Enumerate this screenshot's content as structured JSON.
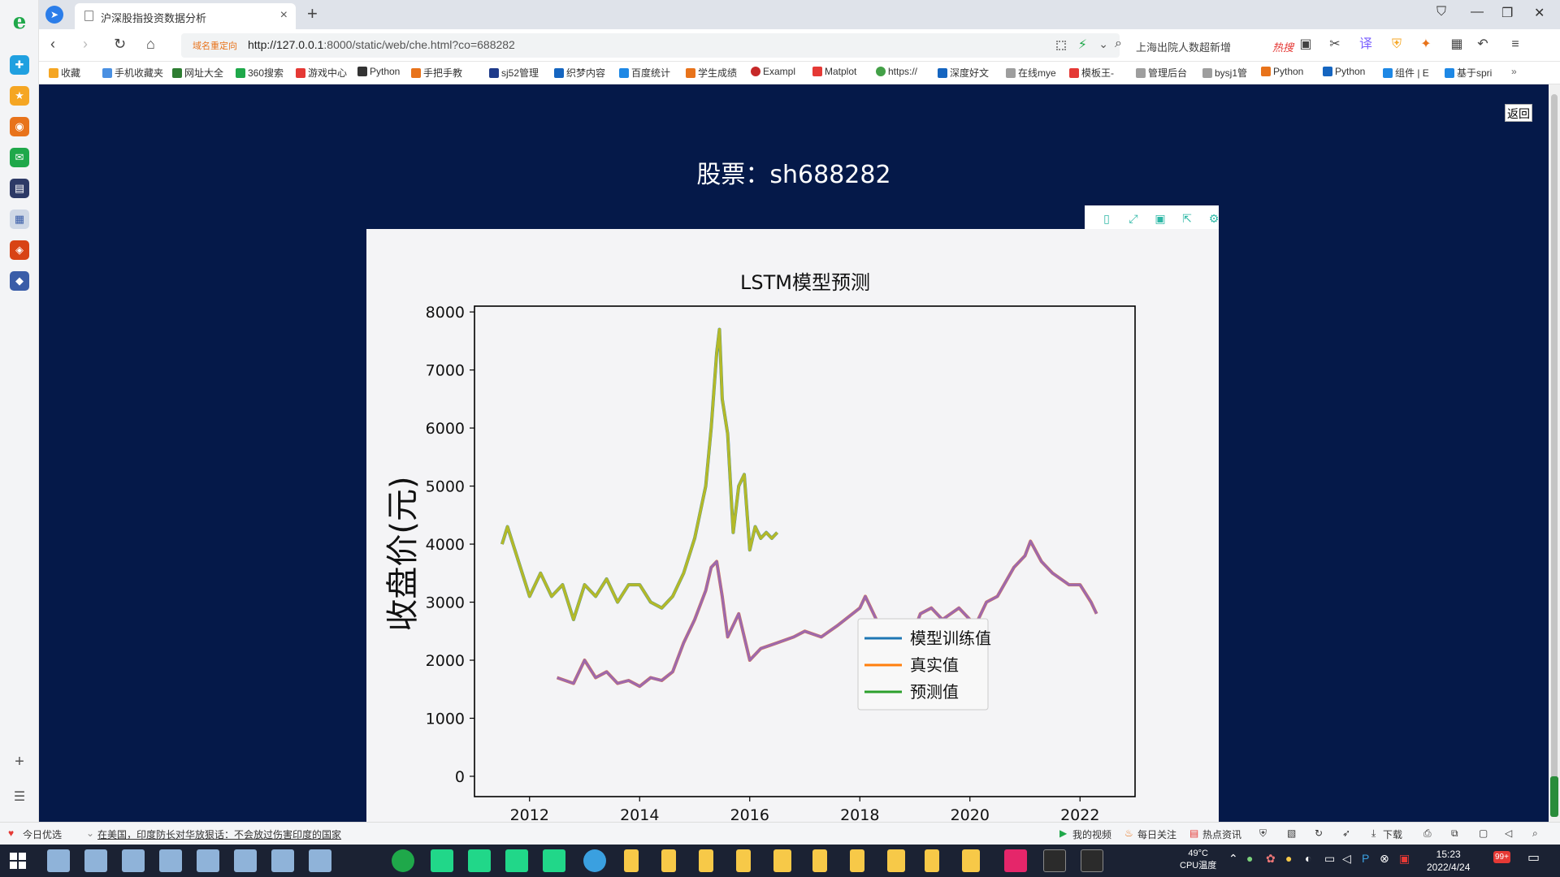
{
  "browser": {
    "tab_title": "沪深股指投资数据分析",
    "redirect_label": "域名重定向",
    "url_host": "http://127.0.0.1",
    "url_rest": ":8000/static/web/che.html?co=688282",
    "search_text": "上海出院人数超新增",
    "search_hot": "热搜"
  },
  "bookmarks": [
    {
      "label": "收藏",
      "color": "#f5a623"
    },
    {
      "label": "手机收藏夹",
      "color": "#4a90e2"
    },
    {
      "label": "网址大全",
      "color": "#2e7d32"
    },
    {
      "label": "360搜索",
      "color": "#1fa84a"
    },
    {
      "label": "游戏中心",
      "color": "#e53935"
    },
    {
      "label": "Python",
      "color": "#333333"
    },
    {
      "label": "手把手教",
      "color": "#e8731b"
    },
    {
      "label": "sj52管理",
      "color": "#1e3a8a"
    },
    {
      "label": "织梦内容",
      "color": "#1565c0"
    },
    {
      "label": "百度统计",
      "color": "#1e88e5"
    },
    {
      "label": "学生成绩",
      "color": "#e8731b"
    },
    {
      "label": "Exampl",
      "color": "#c62828"
    },
    {
      "label": "Matplot",
      "color": "#e53935"
    },
    {
      "label": "https://",
      "color": "#43a047"
    },
    {
      "label": "深度好文",
      "color": "#1565c0"
    },
    {
      "label": "在线mye",
      "color": "#9e9e9e"
    },
    {
      "label": "模板王-",
      "color": "#e53935"
    },
    {
      "label": "管理后台",
      "color": "#9e9e9e"
    },
    {
      "label": "bysj1管",
      "color": "#9e9e9e"
    },
    {
      "label": "Python",
      "color": "#e8731b"
    },
    {
      "label": "Python",
      "color": "#1565c0"
    },
    {
      "label": "组件 | E",
      "color": "#1e88e5"
    },
    {
      "label": "基于spri",
      "color": "#1e88e5"
    }
  ],
  "page": {
    "back_label": "返回",
    "title": "股票：sh688282"
  },
  "chart_data": {
    "type": "line",
    "title": "LSTM模型预测",
    "xlabel": "",
    "ylabel": "收盘价(元)",
    "xlim": [
      2011.0,
      2023.0
    ],
    "ylim": [
      -350,
      8100
    ],
    "yticks": [
      0,
      1000,
      2000,
      3000,
      4000,
      5000,
      6000,
      7000,
      8000
    ],
    "xticks": [
      2012,
      2014,
      2016,
      2018,
      2020,
      2022
    ],
    "legend_position": "lower-right",
    "grid": false,
    "series": [
      {
        "name": "模型训练值",
        "color": "#1f77b4",
        "x": [
          2011.5,
          2011.6,
          2011.8,
          2012.0,
          2012.2,
          2012.4,
          2012.6,
          2012.8,
          2013.0,
          2013.2,
          2013.4,
          2013.6,
          2013.8,
          2014.0,
          2014.2,
          2014.4,
          2014.6,
          2014.8,
          2015.0,
          2015.2,
          2015.3,
          2015.4,
          2015.45,
          2015.5,
          2015.6,
          2015.7,
          2015.8,
          2015.9,
          2016.0,
          2016.1,
          2016.2,
          2016.3,
          2016.4,
          2016.5
        ],
        "values": [
          4000,
          4300,
          3700,
          3100,
          3500,
          3100,
          3300,
          2700,
          3300,
          3100,
          3400,
          3000,
          3300,
          3300,
          3000,
          2900,
          3100,
          3500,
          4100,
          5000,
          6000,
          7300,
          7700,
          6500,
          5900,
          4200,
          5000,
          5200,
          3900,
          4300,
          4100,
          4200,
          4100,
          4200
        ]
      },
      {
        "name": "真实值",
        "color": "#ff7f0e",
        "x": [
          2012.5,
          2012.8,
          2013.0,
          2013.2,
          2013.4,
          2013.6,
          2013.8,
          2014.0,
          2014.2,
          2014.4,
          2014.6,
          2014.8,
          2015.0,
          2015.2,
          2015.3,
          2015.4,
          2015.5,
          2015.6,
          2015.8,
          2016.0,
          2016.2,
          2016.5,
          2016.8,
          2017.0,
          2017.3,
          2017.6,
          2018.0,
          2018.1,
          2018.3,
          2018.6,
          2018.9,
          2019.1,
          2019.3,
          2019.5,
          2019.8,
          2020.1,
          2020.3,
          2020.5,
          2020.8,
          2021.0,
          2021.1,
          2021.3,
          2021.5,
          2021.8,
          2022.0,
          2022.2,
          2022.3
        ],
        "values": [
          1700,
          1600,
          2000,
          1700,
          1800,
          1600,
          1650,
          1550,
          1700,
          1650,
          1800,
          2300,
          2700,
          3200,
          3600,
          3700,
          3100,
          2400,
          2800,
          2000,
          2200,
          2300,
          2400,
          2500,
          2400,
          2600,
          2900,
          3100,
          2700,
          2500,
          2300,
          2800,
          2900,
          2700,
          2900,
          2600,
          3000,
          3100,
          3600,
          3800,
          4050,
          3700,
          3500,
          3300,
          3300,
          3000,
          2800
        ]
      },
      {
        "name": "预测值",
        "color": "#2ca02c",
        "x": [
          2011.5,
          2011.6,
          2011.8,
          2012.0,
          2012.2,
          2012.4,
          2012.6,
          2012.8,
          2013.0,
          2013.2,
          2013.4,
          2013.6,
          2013.8,
          2014.0,
          2014.2,
          2014.4,
          2014.6,
          2014.8,
          2015.0,
          2015.2,
          2015.3,
          2015.4,
          2015.45,
          2015.5,
          2015.6,
          2015.7,
          2015.8,
          2015.9,
          2016.0,
          2016.1,
          2016.2,
          2016.3,
          2016.4,
          2016.5
        ],
        "values": [
          4000,
          4300,
          3700,
          3100,
          3500,
          3100,
          3300,
          2700,
          3300,
          3100,
          3400,
          3000,
          3300,
          3300,
          3000,
          2900,
          3100,
          3500,
          4100,
          5000,
          6000,
          7300,
          7700,
          6500,
          5900,
          4200,
          5000,
          5200,
          3900,
          4300,
          4100,
          4200,
          4100,
          4200
        ]
      }
    ]
  },
  "statusbar": {
    "left_label": "今日优选",
    "news": "在美国，印度防长对华放狠话：不会放过伤害印度的国家",
    "my_video": "我的视频",
    "daily_follow": "每日关注",
    "hot_news": "热点资讯",
    "download": "下载"
  },
  "taskbar": {
    "temperature": "49°C",
    "temperature_label": "CPU温度",
    "time": "15:23",
    "date": "2022/4/24",
    "badge": "99+"
  }
}
